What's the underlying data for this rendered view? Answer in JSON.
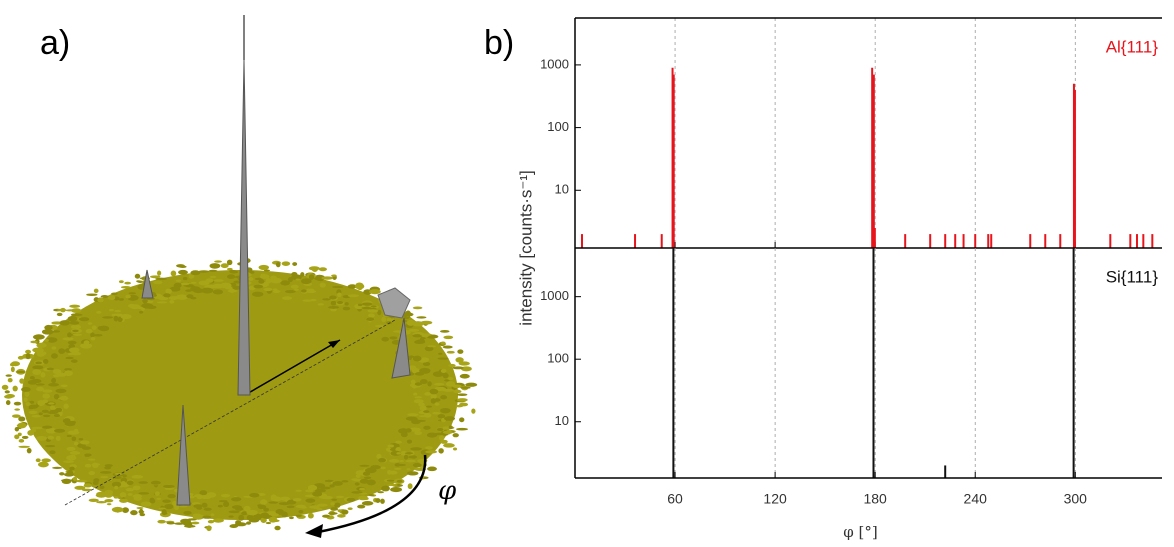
{
  "panel_labels": [
    "a)",
    "b)"
  ],
  "illustration": {
    "angle_label": "φ"
  },
  "chart_data": [
    {
      "type": "bar",
      "series_name": "Al{111}",
      "color": "#e8141c",
      "log_y": true,
      "grid": true,
      "ylabel": "intensity [counts·s⁻¹]",
      "x": [
        58.5,
        59.2,
        178.2,
        179.2,
        179.8,
        299.2,
        299.8,
        4.2,
        36,
        52,
        198,
        213,
        222,
        228,
        233,
        240,
        247.8,
        249.6,
        273,
        282,
        291,
        321,
        333,
        337,
        340.8,
        346.2
      ],
      "values": [
        900,
        700,
        900,
        700,
        2.5,
        500,
        400,
        2,
        2,
        2,
        2,
        2,
        2,
        2,
        2,
        2,
        2,
        2,
        2,
        2,
        2,
        2,
        2,
        2,
        2,
        2
      ],
      "xlim": [
        0,
        352
      ],
      "xticks": [
        60,
        120,
        180,
        240,
        300
      ],
      "ylim": [
        1.2,
        5600
      ],
      "yticks": [
        10,
        100,
        1000
      ]
    },
    {
      "type": "bar",
      "series_name": "Si{111}",
      "color": "#111111",
      "log_y": true,
      "grid": true,
      "xlabel": "φ [°]",
      "x": [
        59,
        179,
        299,
        222
      ],
      "values": [
        6000,
        6000,
        6000,
        2
      ],
      "xlim": [
        0,
        352
      ],
      "xticks": [
        60,
        120,
        180,
        240,
        300
      ],
      "ylim": [
        1.26,
        6000
      ],
      "yticks": [
        10,
        100,
        1000
      ]
    }
  ]
}
